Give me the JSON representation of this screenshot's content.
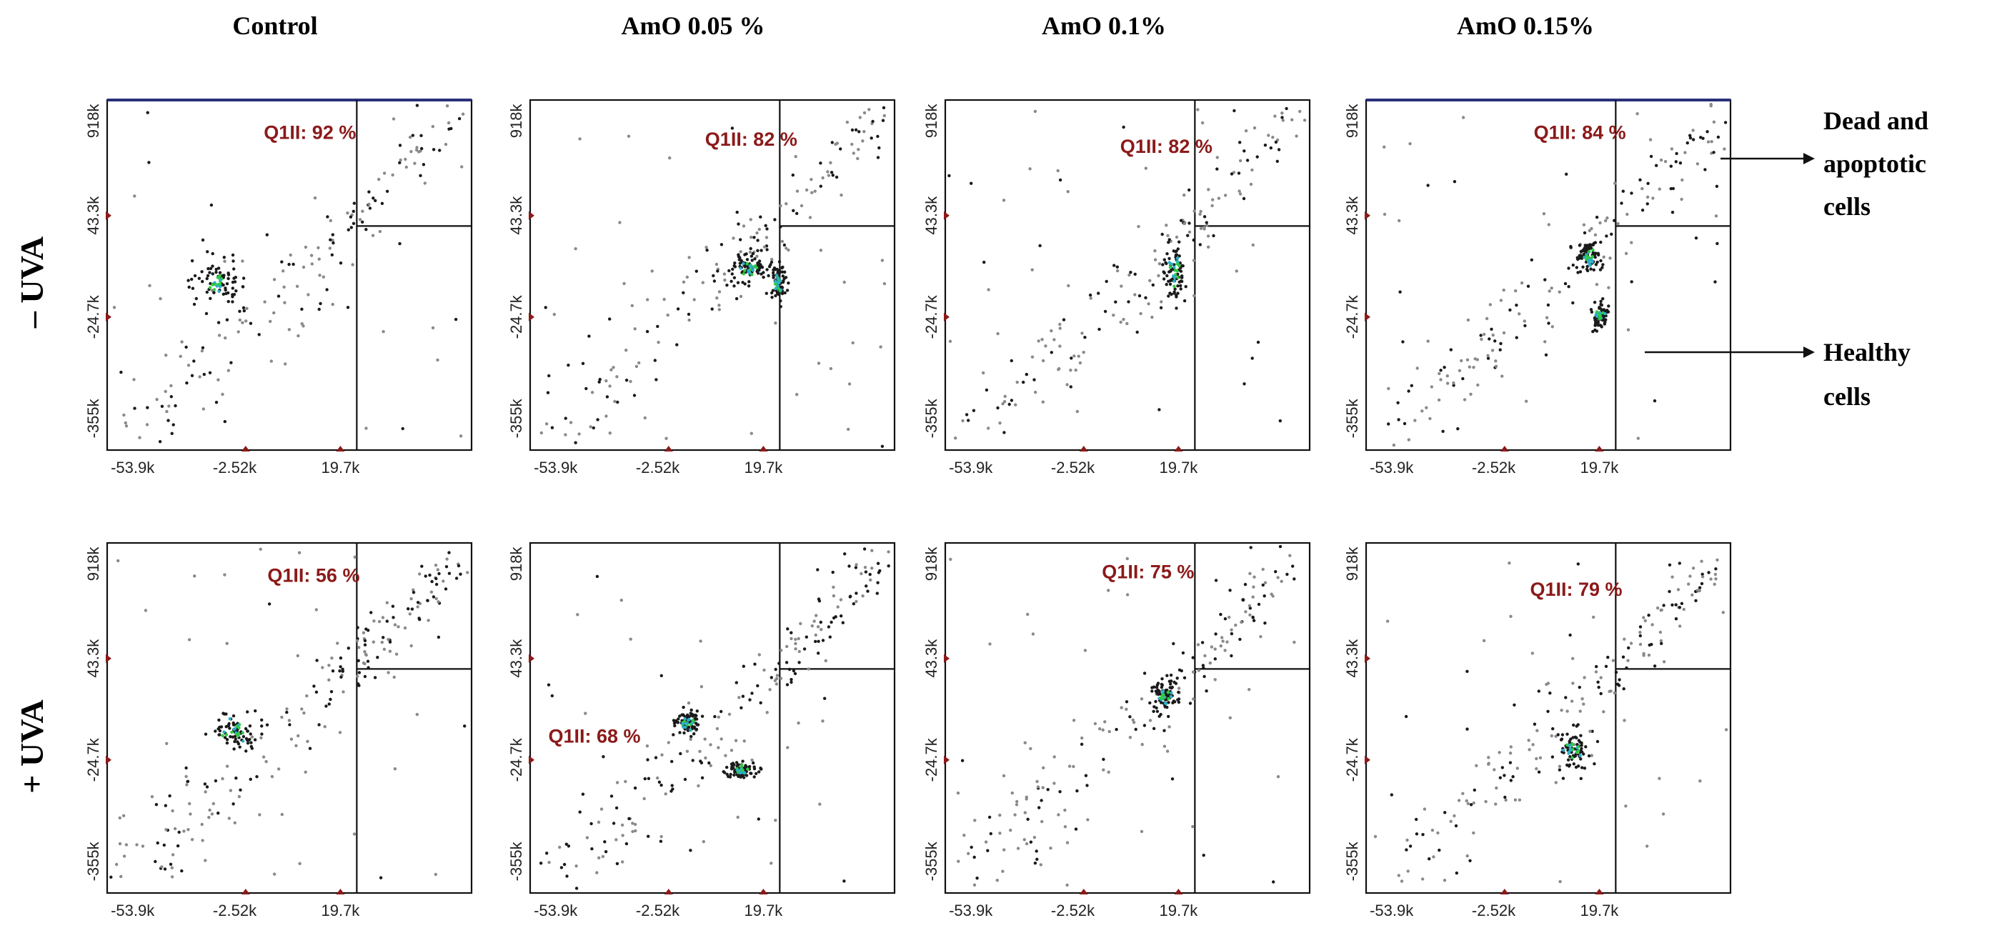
{
  "column_titles": [
    "Control",
    "AmO 0.05 %",
    "AmO 0.1%",
    "AmO 0.15%"
  ],
  "row_labels": [
    "– UVA",
    "+ UVA"
  ],
  "annotations": {
    "dead_line1": "Dead and",
    "dead_line2": "apoptotic",
    "dead_line3": "cells",
    "healthy_line1": "Healthy",
    "healthy_line2": "cells"
  },
  "colors": {
    "quadrant_label": "#8b1a1a",
    "dots_dark": "#1a1a1a",
    "dots_light": "#8a8a8a",
    "dense_green": "#2ecc40",
    "dense_cyan": "#2ab0c8",
    "marker": "#8b1a1a"
  },
  "chart_data": [
    {
      "type": "scatter",
      "row": "– UVA",
      "condition": "Control",
      "quadrant_label": "Q1II: 92 %",
      "quadrant_value": 92,
      "x_ticks": [
        "-53.9k",
        "-2.52k",
        "19.7k"
      ],
      "y_ticks": [
        "-355k",
        "-24.7k",
        "43.3k",
        "918k"
      ]
    },
    {
      "type": "scatter",
      "row": "– UVA",
      "condition": "AmO 0.05 %",
      "quadrant_label": "Q1II: 82 %",
      "quadrant_value": 82,
      "x_ticks": [
        "-53.9k",
        "-2.52k",
        "19.7k"
      ],
      "y_ticks": [
        "-355k",
        "-24.7k",
        "43.3k",
        "918k"
      ]
    },
    {
      "type": "scatter",
      "row": "– UVA",
      "condition": "AmO 0.1%",
      "quadrant_label": "Q1II: 82 %",
      "quadrant_value": 82,
      "x_ticks": [
        "-53.9k",
        "-2.52k",
        "19.7k"
      ],
      "y_ticks": [
        "-355k",
        "-24.7k",
        "43.3k",
        "918k"
      ]
    },
    {
      "type": "scatter",
      "row": "– UVA",
      "condition": "AmO 0.15%",
      "quadrant_label": "Q1II: 84 %",
      "quadrant_value": 84,
      "x_ticks": [
        "-53.9k",
        "-2.52k",
        "19.7k"
      ],
      "y_ticks": [
        "-355k",
        "-24.7k",
        "43.3k",
        "918k"
      ]
    },
    {
      "type": "scatter",
      "row": "+ UVA",
      "condition": "Control",
      "quadrant_label": "Q1II: 56 %",
      "quadrant_value": 56,
      "x_ticks": [
        "-53.9k",
        "-2.52k",
        "19.7k"
      ],
      "y_ticks": [
        "-355k",
        "-24.7k",
        "43.3k",
        "918k"
      ]
    },
    {
      "type": "scatter",
      "row": "+ UVA",
      "condition": "AmO 0.05 %",
      "quadrant_label": "Q1II: 68 %",
      "quadrant_value": 68,
      "x_ticks": [
        "-53.9k",
        "-2.52k",
        "19.7k"
      ],
      "y_ticks": [
        "-355k",
        "-24.7k",
        "43.3k",
        "918k"
      ]
    },
    {
      "type": "scatter",
      "row": "+ UVA",
      "condition": "AmO 0.1%",
      "quadrant_label": "Q1II: 75 %",
      "quadrant_value": 75,
      "x_ticks": [
        "-53.9k",
        "-2.52k",
        "19.7k"
      ],
      "y_ticks": [
        "-355k",
        "-24.7k",
        "43.3k",
        "918k"
      ]
    },
    {
      "type": "scatter",
      "row": "+ UVA",
      "condition": "AmO 0.15%",
      "quadrant_label": "Q1II: 79 %",
      "quadrant_value": 79,
      "x_ticks": [
        "-53.9k",
        "-2.52k",
        "19.7k"
      ],
      "y_ticks": [
        "-355k",
        "-24.7k",
        "43.3k",
        "918k"
      ]
    }
  ]
}
